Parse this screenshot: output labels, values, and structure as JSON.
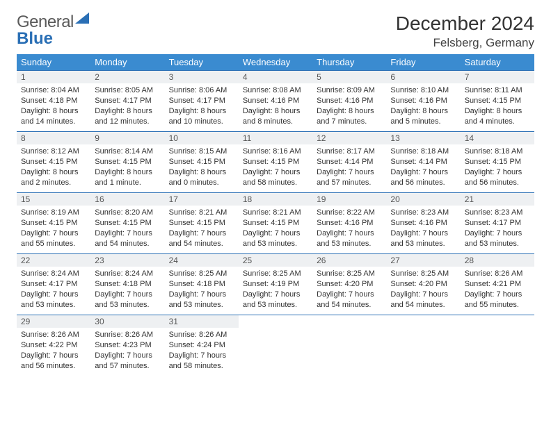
{
  "logo": {
    "text_a": "General",
    "text_b": "Blue"
  },
  "title": "December 2024",
  "location": "Felsberg, Germany",
  "colors": {
    "header_bg": "#3a8bd0",
    "header_text": "#ffffff",
    "row_border": "#2a6fb5",
    "daynum_bg": "#eef0f2",
    "body_text": "#333333",
    "logo_gray": "#5a5a5a",
    "logo_blue": "#2a6fb5"
  },
  "weekdays": [
    "Sunday",
    "Monday",
    "Tuesday",
    "Wednesday",
    "Thursday",
    "Friday",
    "Saturday"
  ],
  "weeks": [
    [
      {
        "day": "1",
        "sunrise": "Sunrise: 8:04 AM",
        "sunset": "Sunset: 4:18 PM",
        "daylight1": "Daylight: 8 hours",
        "daylight2": "and 14 minutes."
      },
      {
        "day": "2",
        "sunrise": "Sunrise: 8:05 AM",
        "sunset": "Sunset: 4:17 PM",
        "daylight1": "Daylight: 8 hours",
        "daylight2": "and 12 minutes."
      },
      {
        "day": "3",
        "sunrise": "Sunrise: 8:06 AM",
        "sunset": "Sunset: 4:17 PM",
        "daylight1": "Daylight: 8 hours",
        "daylight2": "and 10 minutes."
      },
      {
        "day": "4",
        "sunrise": "Sunrise: 8:08 AM",
        "sunset": "Sunset: 4:16 PM",
        "daylight1": "Daylight: 8 hours",
        "daylight2": "and 8 minutes."
      },
      {
        "day": "5",
        "sunrise": "Sunrise: 8:09 AM",
        "sunset": "Sunset: 4:16 PM",
        "daylight1": "Daylight: 8 hours",
        "daylight2": "and 7 minutes."
      },
      {
        "day": "6",
        "sunrise": "Sunrise: 8:10 AM",
        "sunset": "Sunset: 4:16 PM",
        "daylight1": "Daylight: 8 hours",
        "daylight2": "and 5 minutes."
      },
      {
        "day": "7",
        "sunrise": "Sunrise: 8:11 AM",
        "sunset": "Sunset: 4:15 PM",
        "daylight1": "Daylight: 8 hours",
        "daylight2": "and 4 minutes."
      }
    ],
    [
      {
        "day": "8",
        "sunrise": "Sunrise: 8:12 AM",
        "sunset": "Sunset: 4:15 PM",
        "daylight1": "Daylight: 8 hours",
        "daylight2": "and 2 minutes."
      },
      {
        "day": "9",
        "sunrise": "Sunrise: 8:14 AM",
        "sunset": "Sunset: 4:15 PM",
        "daylight1": "Daylight: 8 hours",
        "daylight2": "and 1 minute."
      },
      {
        "day": "10",
        "sunrise": "Sunrise: 8:15 AM",
        "sunset": "Sunset: 4:15 PM",
        "daylight1": "Daylight: 8 hours",
        "daylight2": "and 0 minutes."
      },
      {
        "day": "11",
        "sunrise": "Sunrise: 8:16 AM",
        "sunset": "Sunset: 4:15 PM",
        "daylight1": "Daylight: 7 hours",
        "daylight2": "and 58 minutes."
      },
      {
        "day": "12",
        "sunrise": "Sunrise: 8:17 AM",
        "sunset": "Sunset: 4:14 PM",
        "daylight1": "Daylight: 7 hours",
        "daylight2": "and 57 minutes."
      },
      {
        "day": "13",
        "sunrise": "Sunrise: 8:18 AM",
        "sunset": "Sunset: 4:14 PM",
        "daylight1": "Daylight: 7 hours",
        "daylight2": "and 56 minutes."
      },
      {
        "day": "14",
        "sunrise": "Sunrise: 8:18 AM",
        "sunset": "Sunset: 4:15 PM",
        "daylight1": "Daylight: 7 hours",
        "daylight2": "and 56 minutes."
      }
    ],
    [
      {
        "day": "15",
        "sunrise": "Sunrise: 8:19 AM",
        "sunset": "Sunset: 4:15 PM",
        "daylight1": "Daylight: 7 hours",
        "daylight2": "and 55 minutes."
      },
      {
        "day": "16",
        "sunrise": "Sunrise: 8:20 AM",
        "sunset": "Sunset: 4:15 PM",
        "daylight1": "Daylight: 7 hours",
        "daylight2": "and 54 minutes."
      },
      {
        "day": "17",
        "sunrise": "Sunrise: 8:21 AM",
        "sunset": "Sunset: 4:15 PM",
        "daylight1": "Daylight: 7 hours",
        "daylight2": "and 54 minutes."
      },
      {
        "day": "18",
        "sunrise": "Sunrise: 8:21 AM",
        "sunset": "Sunset: 4:15 PM",
        "daylight1": "Daylight: 7 hours",
        "daylight2": "and 53 minutes."
      },
      {
        "day": "19",
        "sunrise": "Sunrise: 8:22 AM",
        "sunset": "Sunset: 4:16 PM",
        "daylight1": "Daylight: 7 hours",
        "daylight2": "and 53 minutes."
      },
      {
        "day": "20",
        "sunrise": "Sunrise: 8:23 AM",
        "sunset": "Sunset: 4:16 PM",
        "daylight1": "Daylight: 7 hours",
        "daylight2": "and 53 minutes."
      },
      {
        "day": "21",
        "sunrise": "Sunrise: 8:23 AM",
        "sunset": "Sunset: 4:17 PM",
        "daylight1": "Daylight: 7 hours",
        "daylight2": "and 53 minutes."
      }
    ],
    [
      {
        "day": "22",
        "sunrise": "Sunrise: 8:24 AM",
        "sunset": "Sunset: 4:17 PM",
        "daylight1": "Daylight: 7 hours",
        "daylight2": "and 53 minutes."
      },
      {
        "day": "23",
        "sunrise": "Sunrise: 8:24 AM",
        "sunset": "Sunset: 4:18 PM",
        "daylight1": "Daylight: 7 hours",
        "daylight2": "and 53 minutes."
      },
      {
        "day": "24",
        "sunrise": "Sunrise: 8:25 AM",
        "sunset": "Sunset: 4:18 PM",
        "daylight1": "Daylight: 7 hours",
        "daylight2": "and 53 minutes."
      },
      {
        "day": "25",
        "sunrise": "Sunrise: 8:25 AM",
        "sunset": "Sunset: 4:19 PM",
        "daylight1": "Daylight: 7 hours",
        "daylight2": "and 53 minutes."
      },
      {
        "day": "26",
        "sunrise": "Sunrise: 8:25 AM",
        "sunset": "Sunset: 4:20 PM",
        "daylight1": "Daylight: 7 hours",
        "daylight2": "and 54 minutes."
      },
      {
        "day": "27",
        "sunrise": "Sunrise: 8:25 AM",
        "sunset": "Sunset: 4:20 PM",
        "daylight1": "Daylight: 7 hours",
        "daylight2": "and 54 minutes."
      },
      {
        "day": "28",
        "sunrise": "Sunrise: 8:26 AM",
        "sunset": "Sunset: 4:21 PM",
        "daylight1": "Daylight: 7 hours",
        "daylight2": "and 55 minutes."
      }
    ],
    [
      {
        "day": "29",
        "sunrise": "Sunrise: 8:26 AM",
        "sunset": "Sunset: 4:22 PM",
        "daylight1": "Daylight: 7 hours",
        "daylight2": "and 56 minutes."
      },
      {
        "day": "30",
        "sunrise": "Sunrise: 8:26 AM",
        "sunset": "Sunset: 4:23 PM",
        "daylight1": "Daylight: 7 hours",
        "daylight2": "and 57 minutes."
      },
      {
        "day": "31",
        "sunrise": "Sunrise: 8:26 AM",
        "sunset": "Sunset: 4:24 PM",
        "daylight1": "Daylight: 7 hours",
        "daylight2": "and 58 minutes."
      },
      null,
      null,
      null,
      null
    ]
  ]
}
